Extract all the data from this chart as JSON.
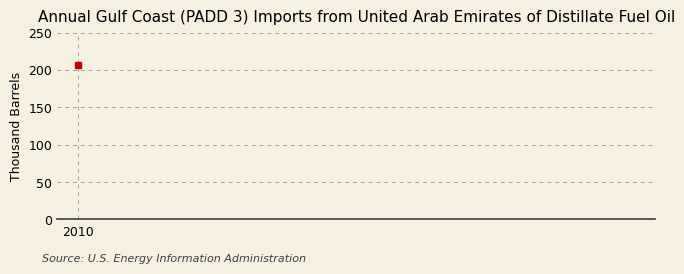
{
  "title": "Annual Gulf Coast (PADD 3) Imports from United Arab Emirates of Distillate Fuel Oil",
  "ylabel": "Thousand Barrels",
  "source_text": "Source: U.S. Energy Information Administration",
  "x_data": [
    2010
  ],
  "y_data": [
    207
  ],
  "xlim": [
    2009.5,
    2024
  ],
  "ylim": [
    0,
    250
  ],
  "yticks": [
    0,
    50,
    100,
    150,
    200,
    250
  ],
  "xticks": [
    2010
  ],
  "background_color": "#f5f0e0",
  "plot_bg_color": "#f5f0e0",
  "marker_color": "#c00000",
  "grid_color": "#a0a0a0",
  "title_fontsize": 11,
  "label_fontsize": 9,
  "source_fontsize": 8,
  "tick_fontsize": 9
}
